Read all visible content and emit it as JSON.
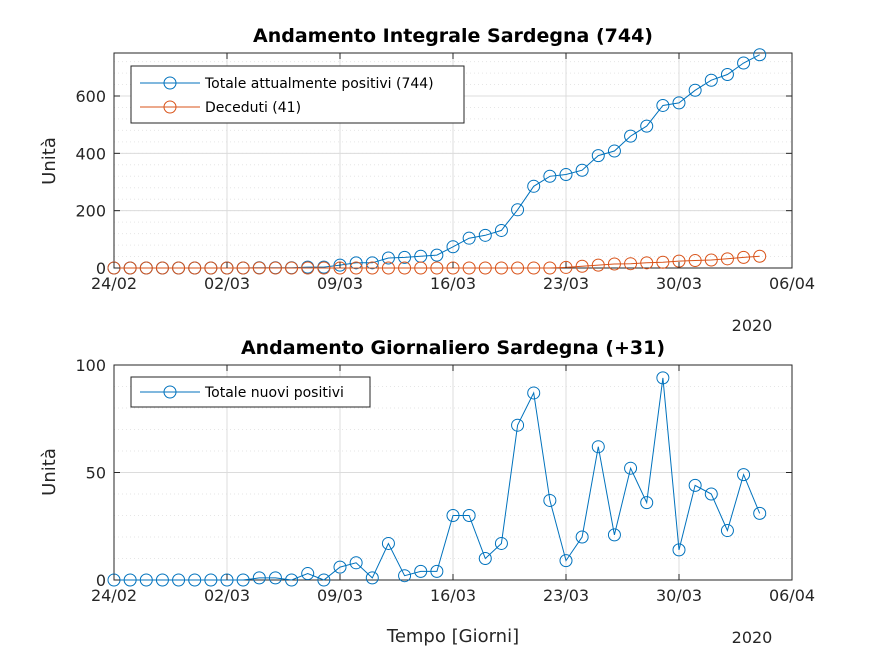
{
  "chart_data": [
    {
      "type": "line",
      "title": "Andamento Integrale Sardegna (744)",
      "xlabel": "",
      "ylabel": "Unità",
      "year_label": "2020",
      "xticks": [
        "24/02",
        "02/03",
        "09/03",
        "16/03",
        "23/03",
        "30/03",
        "06/04"
      ],
      "xlim": [
        "24/02",
        "06/04"
      ],
      "ylim": [
        0,
        750
      ],
      "yticks": [
        0,
        200,
        400,
        600
      ],
      "grid": true,
      "legend": "top-left",
      "x": [
        "24/02",
        "25/02",
        "26/02",
        "27/02",
        "28/02",
        "29/02",
        "01/03",
        "02/03",
        "03/03",
        "04/03",
        "05/03",
        "06/03",
        "07/03",
        "08/03",
        "09/03",
        "10/03",
        "11/03",
        "12/03",
        "13/03",
        "14/03",
        "15/03",
        "16/03",
        "17/03",
        "18/03",
        "19/03",
        "20/03",
        "21/03",
        "22/03",
        "23/03",
        "24/03",
        "25/03",
        "26/03",
        "27/03",
        "28/03",
        "29/03",
        "30/03",
        "31/03",
        "01/04",
        "02/04",
        "03/04",
        "04/04"
      ],
      "series": [
        {
          "name": "Totale attualmente positivi (744)",
          "color": "#0072bd",
          "values": [
            0,
            0,
            0,
            0,
            0,
            0,
            0,
            0,
            0,
            1,
            1,
            1,
            3,
            3,
            10,
            18,
            18,
            35,
            37,
            41,
            45,
            74,
            104,
            114,
            131,
            203,
            285,
            320,
            326,
            341,
            392,
            408,
            460,
            495,
            567,
            576,
            620,
            655,
            675,
            715,
            744
          ]
        },
        {
          "name": "Deceduti (41)",
          "color": "#d95319",
          "values": [
            0,
            0,
            0,
            0,
            0,
            0,
            0,
            0,
            0,
            0,
            0,
            0,
            0,
            0,
            0,
            0,
            0,
            0,
            0,
            0,
            0,
            0,
            0,
            0,
            0,
            0,
            0,
            0,
            2,
            6,
            10,
            14,
            15,
            18,
            20,
            24,
            26,
            28,
            32,
            37,
            41
          ]
        }
      ]
    },
    {
      "type": "line",
      "title": "Andamento Giornaliero Sardegna (+31)",
      "xlabel": "Tempo [Giorni]",
      "ylabel": "Unità",
      "year_label": "2020",
      "xticks": [
        "24/02",
        "02/03",
        "09/03",
        "16/03",
        "23/03",
        "30/03",
        "06/04"
      ],
      "xlim": [
        "24/02",
        "06/04"
      ],
      "ylim": [
        0,
        100
      ],
      "yticks": [
        0,
        50,
        100
      ],
      "grid": true,
      "legend": "top-left",
      "x": [
        "24/02",
        "25/02",
        "26/02",
        "27/02",
        "28/02",
        "29/02",
        "01/03",
        "02/03",
        "03/03",
        "04/03",
        "05/03",
        "06/03",
        "07/03",
        "08/03",
        "09/03",
        "10/03",
        "11/03",
        "12/03",
        "13/03",
        "14/03",
        "15/03",
        "16/03",
        "17/03",
        "18/03",
        "19/03",
        "20/03",
        "21/03",
        "22/03",
        "23/03",
        "24/03",
        "25/03",
        "26/03",
        "27/03",
        "28/03",
        "29/03",
        "30/03",
        "31/03",
        "01/04",
        "02/04",
        "03/04",
        "04/04"
      ],
      "series": [
        {
          "name": "Totale nuovi positivi",
          "color": "#0072bd",
          "values": [
            0,
            0,
            0,
            0,
            0,
            0,
            0,
            0,
            0,
            1,
            1,
            0,
            3,
            0,
            6,
            8,
            1,
            17,
            2,
            4,
            4,
            30,
            30,
            10,
            17,
            72,
            87,
            37,
            9,
            20,
            62,
            21,
            52,
            36,
            94,
            14,
            44,
            40,
            23,
            49,
            31
          ]
        }
      ]
    }
  ]
}
